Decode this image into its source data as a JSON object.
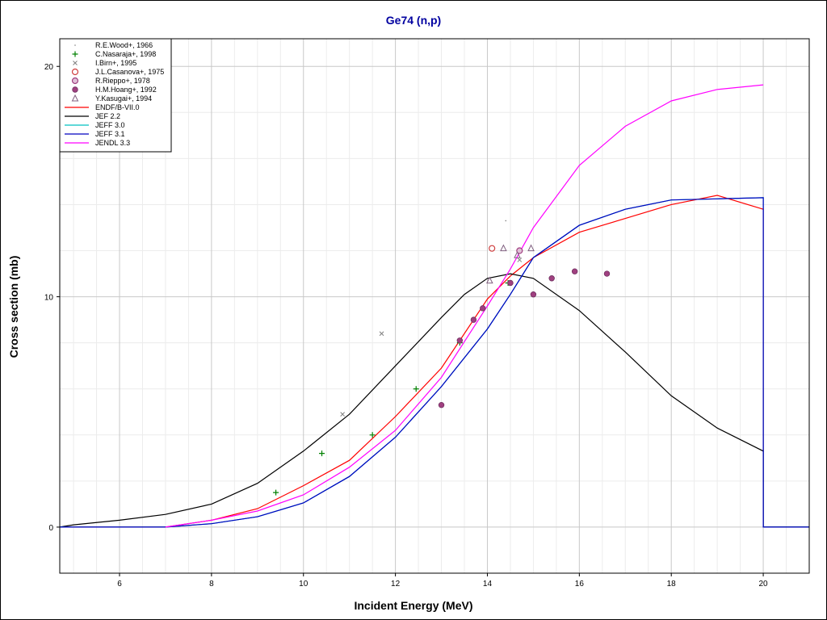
{
  "chart_data": {
    "type": "line",
    "title": "Ge74 (n,p)",
    "xlabel": "Incident Energy (MeV)",
    "ylabel": "Cross section (mb)",
    "xlim": [
      4.7,
      21.0
    ],
    "ylim": [
      -2.0,
      21.2
    ],
    "xticks": [
      6,
      8,
      10,
      12,
      14,
      16,
      18,
      20
    ],
    "yticks": [
      0,
      10,
      20
    ],
    "grid": true,
    "legend_position": "top-left",
    "experimental": [
      {
        "name": "R.E.Wood+, 1966",
        "marker": "dot",
        "color": "#808080",
        "points": [
          [
            14.4,
            13.3
          ]
        ]
      },
      {
        "name": "C.Nasaraja+, 1998",
        "marker": "plus",
        "color": "#008000",
        "points": [
          [
            9.4,
            1.5
          ],
          [
            10.4,
            3.2
          ],
          [
            11.5,
            4.0
          ],
          [
            12.45,
            6.0
          ],
          [
            13.4,
            8.0
          ],
          [
            14.45,
            10.6
          ]
        ]
      },
      {
        "name": "I.Birn+, 1995",
        "marker": "x",
        "color": "#808080",
        "points": [
          [
            10.85,
            4.9
          ],
          [
            11.7,
            8.4
          ],
          [
            14.7,
            11.6
          ]
        ]
      },
      {
        "name": "J.L.Casanova+, 1975",
        "marker": "circle-open",
        "color": "#d04040",
        "points": [
          [
            14.1,
            12.1
          ]
        ]
      },
      {
        "name": "R.Rieppo+, 1978",
        "marker": "circle-hatched",
        "color": "#a04080",
        "points": [
          [
            14.7,
            12.0
          ]
        ]
      },
      {
        "name": "H.M.Hoang+, 1992",
        "marker": "circle-filled",
        "color": "#a04080",
        "points": [
          [
            13.0,
            5.3
          ],
          [
            13.4,
            8.1
          ],
          [
            13.7,
            9.0
          ],
          [
            13.9,
            9.5
          ],
          [
            14.5,
            10.6
          ],
          [
            15.0,
            10.1
          ],
          [
            15.4,
            10.8
          ],
          [
            15.9,
            11.1
          ],
          [
            16.6,
            11.0
          ]
        ]
      },
      {
        "name": "Y.Kasugai+, 1994",
        "marker": "triangle-open",
        "color": "#806080",
        "points": [
          [
            14.05,
            10.7
          ],
          [
            14.35,
            12.1
          ],
          [
            14.65,
            11.8
          ],
          [
            14.95,
            12.1
          ]
        ]
      }
    ],
    "series": [
      {
        "name": "ENDF/B-VII.0",
        "color": "#ff0000",
        "x": [
          4.7,
          6.5,
          7,
          8,
          9,
          10,
          11,
          12,
          13,
          14,
          14.5,
          15,
          16,
          17,
          18,
          19,
          20,
          20,
          21
        ],
        "y": [
          0,
          0,
          0,
          0.3,
          0.8,
          1.8,
          2.9,
          4.8,
          6.9,
          9.9,
          10.9,
          11.7,
          12.8,
          13.4,
          14.0,
          14.4,
          13.8,
          0,
          0
        ]
      },
      {
        "name": "JEF 2.2",
        "color": "#000000",
        "x": [
          4.7,
          5,
          6,
          7,
          8,
          9,
          10,
          11,
          12,
          13,
          13.5,
          14,
          14.5,
          15,
          16,
          17,
          18,
          19,
          20,
          20,
          21
        ],
        "y": [
          0,
          0.1,
          0.3,
          0.55,
          1.0,
          1.9,
          3.3,
          4.9,
          7.0,
          9.1,
          10.1,
          10.8,
          11.0,
          10.8,
          9.4,
          7.6,
          5.7,
          4.3,
          3.3,
          0,
          0
        ]
      },
      {
        "name": "JEFF 3.0",
        "color": "#00c0c0",
        "x": [
          4.7,
          6.5,
          7,
          8,
          9,
          10,
          11,
          12,
          13,
          14,
          14.5,
          15,
          16,
          17,
          18,
          19,
          20,
          20,
          21
        ],
        "y": [
          0,
          0,
          0,
          0.15,
          0.45,
          1.05,
          2.2,
          3.9,
          6.1,
          8.6,
          10.1,
          11.7,
          13.1,
          13.8,
          14.2,
          14.25,
          14.3,
          0,
          0
        ]
      },
      {
        "name": "JEFF 3.1",
        "color": "#0000c0",
        "x": [
          4.7,
          6.5,
          7,
          8,
          9,
          10,
          11,
          12,
          13,
          14,
          14.5,
          15,
          16,
          17,
          18,
          19,
          20,
          20,
          21
        ],
        "y": [
          0,
          0,
          0,
          0.15,
          0.45,
          1.05,
          2.2,
          3.9,
          6.1,
          8.6,
          10.1,
          11.7,
          13.1,
          13.8,
          14.2,
          14.25,
          14.3,
          0,
          0
        ]
      },
      {
        "name": "JENDL 3.3",
        "color": "#ff00ff",
        "x": [
          7,
          8,
          9,
          10,
          11,
          12,
          13,
          14,
          14.5,
          15,
          16,
          17,
          18,
          19,
          20
        ],
        "y": [
          0,
          0.3,
          0.7,
          1.4,
          2.6,
          4.2,
          6.5,
          9.6,
          11.2,
          13.0,
          15.7,
          17.4,
          18.5,
          19.0,
          19.2
        ]
      }
    ]
  }
}
